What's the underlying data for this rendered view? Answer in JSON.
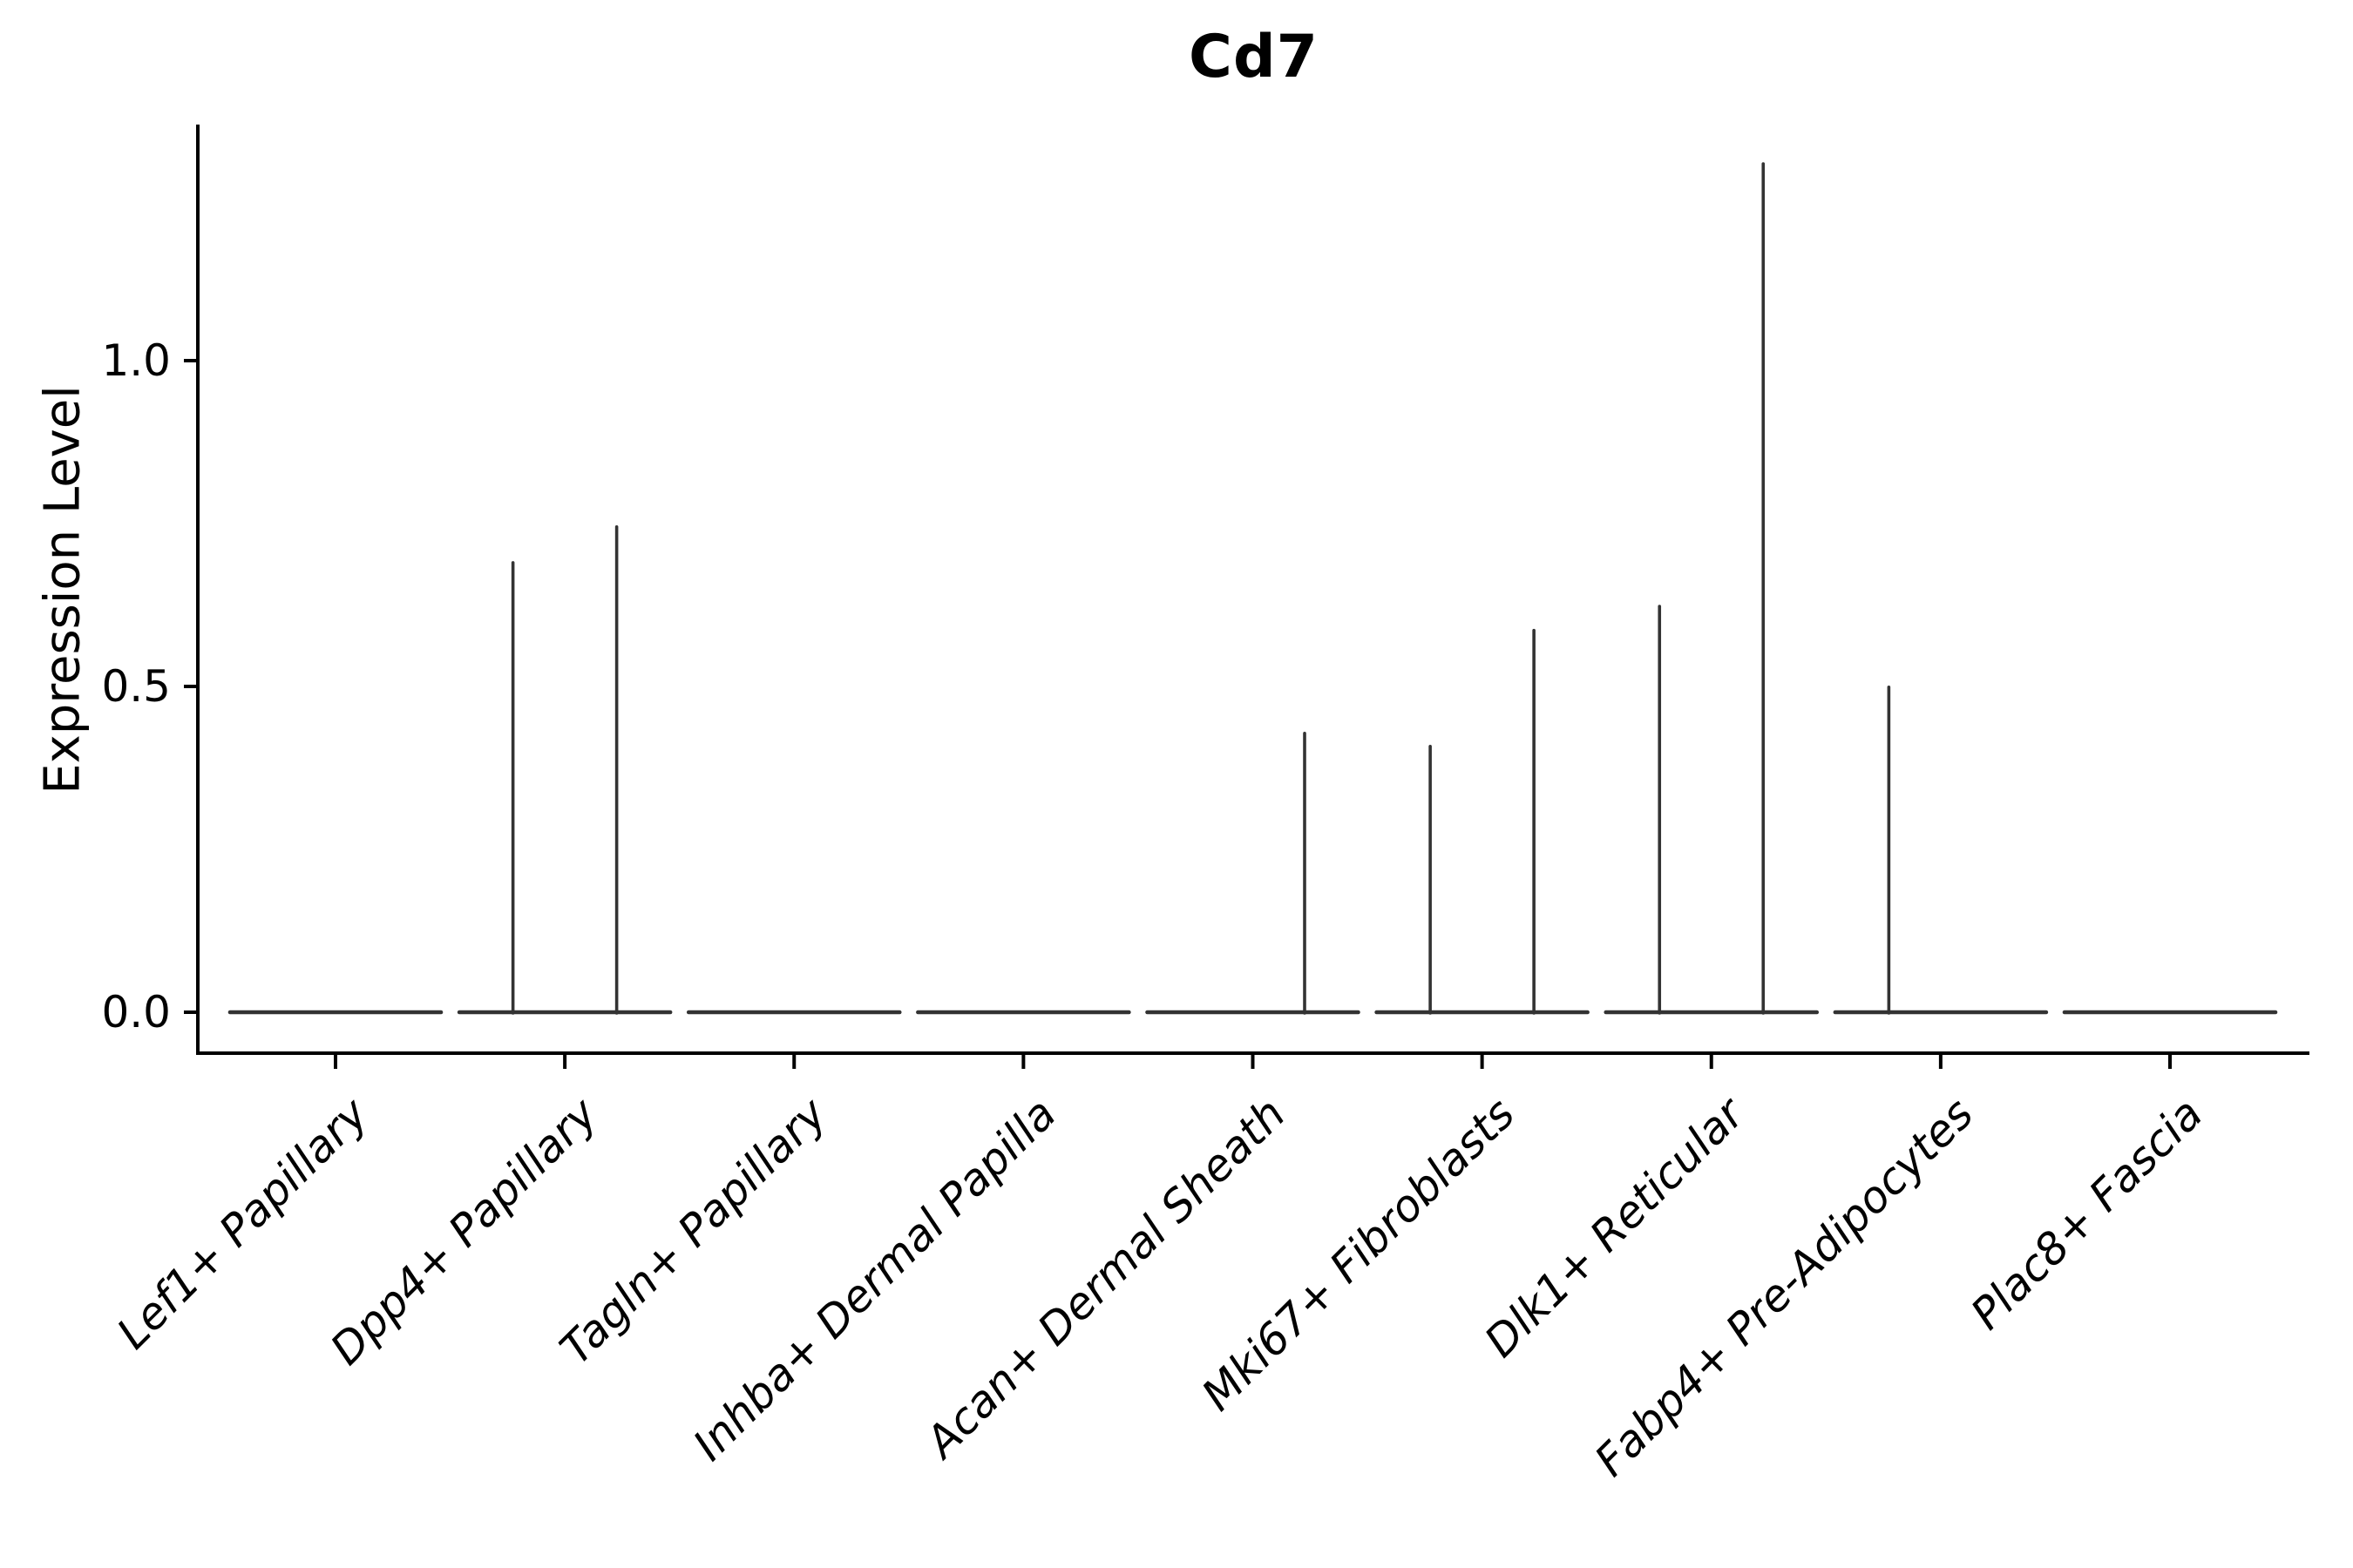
{
  "chart_data": {
    "type": "violin",
    "title": "Cd7",
    "xlabel": "",
    "ylabel": "Expression Level",
    "ylim": [
      -0.06,
      1.36
    ],
    "grid": false,
    "legend": false,
    "x_tick_rotation_deg": 45,
    "violins_per_category": 2,
    "baseline_value": 0.0,
    "yticks": [
      {
        "label": "0.0",
        "value": 0.0
      },
      {
        "label": "0.5",
        "value": 0.5
      },
      {
        "label": "1.0",
        "value": 1.0
      }
    ],
    "categories": [
      "Lef1+ Papillary",
      "Dpp4+ Papillary",
      "Tagln+ Papillary",
      "Inhba+ Dermal Papilla",
      "Acan+ Dermal Sheath",
      "Mki67+ Fibroblasts",
      "Dlk1+ Reticular",
      "Fabp4+ Pre-Adipocytes",
      "Plac8+ Fascia"
    ],
    "spikes": [
      {
        "category": "Dpp4+ Papillary",
        "position": "left",
        "peak": 0.69
      },
      {
        "category": "Dpp4+ Papillary",
        "position": "right",
        "peak": 0.745
      },
      {
        "category": "Acan+ Dermal Sheath",
        "position": "right",
        "peak": 0.428
      },
      {
        "category": "Mki67+ Fibroblasts",
        "position": "left",
        "peak": 0.408
      },
      {
        "category": "Mki67+ Fibroblasts",
        "position": "right",
        "peak": 0.586
      },
      {
        "category": "Dlk1+ Reticular",
        "position": "left",
        "peak": 0.623
      },
      {
        "category": "Dlk1+ Reticular",
        "position": "right",
        "peak": 1.302
      },
      {
        "category": "Fabp4+ Pre-Adipocytes",
        "position": "left",
        "peak": 0.499
      }
    ],
    "colors": {
      "violin": "#333333",
      "axis": "#000000",
      "text": "#000000",
      "background": "#ffffff"
    }
  }
}
